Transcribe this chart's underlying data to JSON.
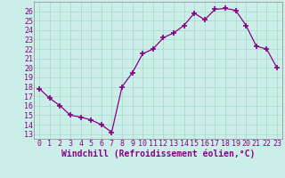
{
  "x": [
    0,
    1,
    2,
    3,
    4,
    5,
    6,
    7,
    8,
    9,
    10,
    11,
    12,
    13,
    14,
    15,
    16,
    17,
    18,
    19,
    20,
    21,
    22,
    23
  ],
  "y": [
    17.8,
    16.8,
    16.0,
    15.0,
    14.8,
    14.5,
    14.0,
    13.2,
    18.0,
    19.5,
    21.5,
    22.0,
    23.2,
    23.7,
    24.5,
    25.8,
    25.1,
    26.2,
    26.3,
    26.1,
    24.5,
    22.3,
    22.0,
    20.0
  ],
  "line_color": "#880088",
  "marker_color": "#880088",
  "bg_color": "#cceee8",
  "grid_color": "#aaddcc",
  "xlabel": "Windchill (Refroidissement éolien,°C)",
  "xlim": [
    -0.5,
    23.5
  ],
  "ylim": [
    12.5,
    27.0
  ],
  "yticks": [
    13,
    14,
    15,
    16,
    17,
    18,
    19,
    20,
    21,
    22,
    23,
    24,
    25,
    26
  ],
  "xticks": [
    0,
    1,
    2,
    3,
    4,
    5,
    6,
    7,
    8,
    9,
    10,
    11,
    12,
    13,
    14,
    15,
    16,
    17,
    18,
    19,
    20,
    21,
    22,
    23
  ],
  "xlabel_fontsize": 7.0,
  "tick_fontsize": 6.0
}
